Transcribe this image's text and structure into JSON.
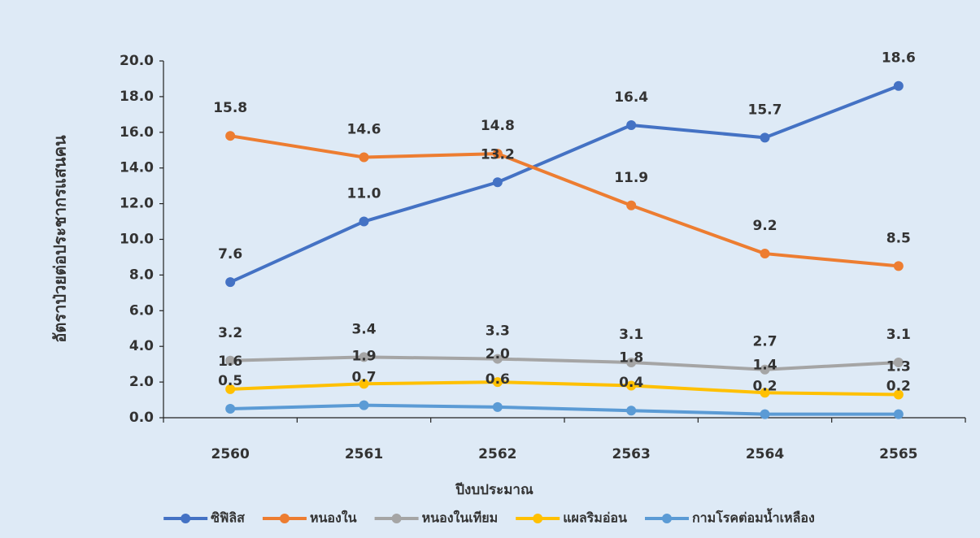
{
  "chart_data": {
    "type": "line",
    "x_label": "ปีงบประมาณ",
    "y_label": "อัตราป่วยต่อประชากรแสนคน",
    "categories": [
      "2560",
      "2561",
      "2562",
      "2563",
      "2564",
      "2565"
    ],
    "series": [
      {
        "name": "ซิฟิลิส",
        "color": "#4472c4",
        "values": [
          7.6,
          11.0,
          13.2,
          16.4,
          15.7,
          18.6
        ],
        "value_labels": [
          "7.6",
          "11.0",
          "13.2",
          "16.4",
          "15.7",
          "18.6"
        ]
      },
      {
        "name": "หนองใน",
        "color": "#ed7d31",
        "values": [
          15.8,
          14.6,
          14.8,
          11.9,
          9.2,
          8.5
        ],
        "value_labels": [
          "15.8",
          "14.6",
          "14.8",
          "11.9",
          "9.2",
          "8.5"
        ]
      },
      {
        "name": "หนองในเทียม",
        "color": "#a5a5a5",
        "values": [
          3.2,
          3.4,
          3.3,
          3.1,
          2.7,
          3.1
        ],
        "value_labels": [
          "3.2",
          "3.4",
          "3.3",
          "3.1",
          "2.7",
          "3.1"
        ]
      },
      {
        "name": "แผลริมอ่อน",
        "color": "#ffc000",
        "values": [
          1.6,
          1.9,
          2.0,
          1.8,
          1.4,
          1.3
        ],
        "value_labels": [
          "1.6",
          "1.9",
          "2.0",
          "1.8",
          "1.4",
          "1.3"
        ]
      },
      {
        "name": "กามโรคต่อมน้ำเหลือง",
        "color": "#5b9bd5",
        "values": [
          0.5,
          0.7,
          0.6,
          0.4,
          0.2,
          0.2
        ],
        "value_labels": [
          "0.5",
          "0.7",
          "0.6",
          "0.4",
          "0.2",
          "0.2"
        ]
      }
    ],
    "ylim": [
      0,
      20
    ],
    "yticks": [
      {
        "value": 0,
        "label": "0.0"
      },
      {
        "value": 2,
        "label": "2.0"
      },
      {
        "value": 4,
        "label": "4.0"
      },
      {
        "value": 6,
        "label": "6.0"
      },
      {
        "value": 8,
        "label": "8.0"
      },
      {
        "value": 10,
        "label": "10.0"
      },
      {
        "value": 12,
        "label": "12.0"
      },
      {
        "value": 14,
        "label": "14.0"
      },
      {
        "value": 16,
        "label": "16.0"
      },
      {
        "value": 18,
        "label": "18.0"
      },
      {
        "value": 20,
        "label": "20.0"
      }
    ],
    "legend": "bottom"
  }
}
